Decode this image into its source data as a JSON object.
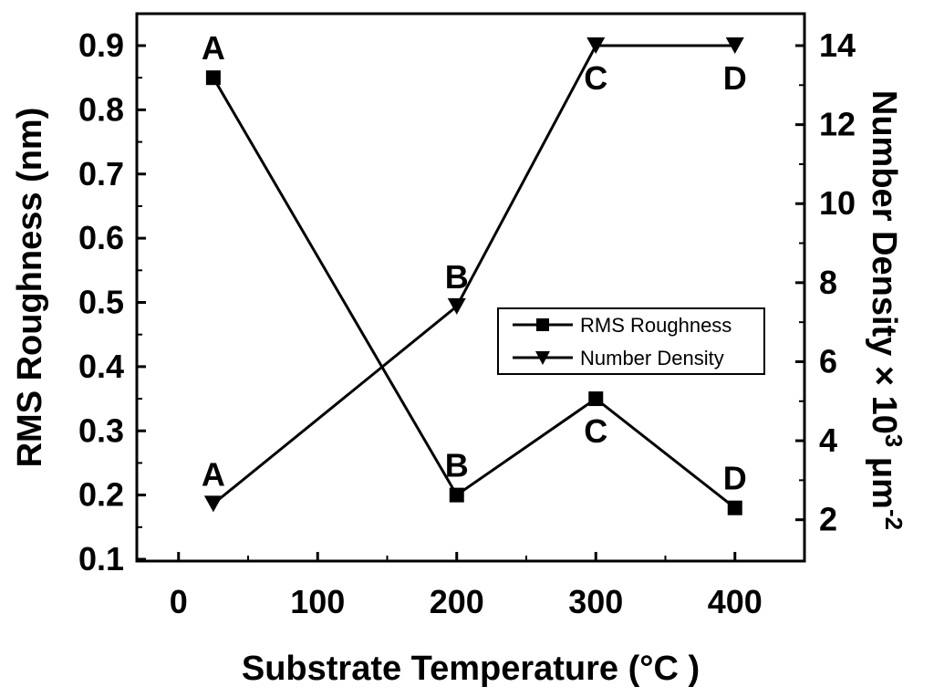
{
  "chart_data": {
    "type": "line",
    "xlabel": "Substrate Temperature (°C )",
    "ylabel_left": "RMS Roughness (nm)",
    "ylabel_right": "Number Density × 10",
    "ylabel_right_exp1": "3",
    "ylabel_right_unit": " μm",
    "ylabel_right_exp2": "-2",
    "xlim": [
      -30,
      450
    ],
    "ylim_left": [
      0.1,
      0.9
    ],
    "ylim_right": [
      1.0,
      14.0
    ],
    "x_ticks": [
      0,
      100,
      200,
      300,
      400
    ],
    "y_left_ticks": [
      "0.1",
      "0.2",
      "0.3",
      "0.4",
      "0.5",
      "0.6",
      "0.7",
      "0.8",
      "0.9"
    ],
    "y_right_ticks": [
      "2",
      "4",
      "6",
      "8",
      "10",
      "12",
      "14"
    ],
    "legend_position": "center-right",
    "series": [
      {
        "name": "RMS Roughness",
        "axis": "left",
        "marker": "square",
        "x": [
          25,
          200,
          300,
          400
        ],
        "y": [
          0.85,
          0.2,
          0.35,
          0.18
        ],
        "labels": [
          "A",
          "B",
          "C",
          "D"
        ],
        "label_pos": [
          "above",
          "above",
          "below",
          "above"
        ]
      },
      {
        "name": "Number Density",
        "axis": "right",
        "marker": "triangle-down",
        "x": [
          25,
          200,
          300,
          400
        ],
        "y": [
          2.4,
          7.4,
          14.0,
          14.0
        ],
        "labels": [
          "A",
          "B",
          "C",
          "D"
        ],
        "label_pos": [
          "above",
          "above",
          "below",
          "below"
        ]
      }
    ]
  }
}
